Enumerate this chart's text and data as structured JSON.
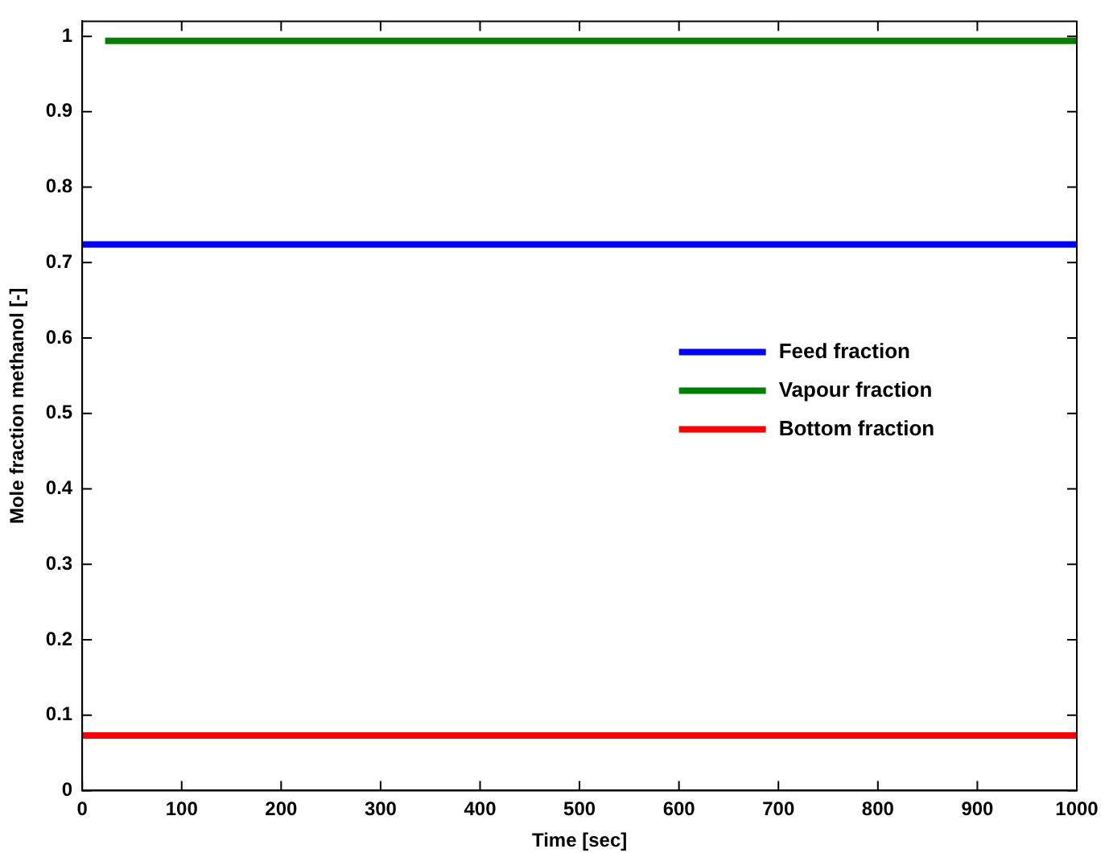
{
  "chart_data": {
    "type": "line",
    "xlabel": "Time [sec]",
    "ylabel": "Mole fraction methanol [-]",
    "xlim": [
      0,
      1000
    ],
    "xticks": [
      0,
      100,
      200,
      300,
      400,
      500,
      600,
      700,
      800,
      900,
      1000
    ],
    "ylim": [
      0,
      1.02
    ],
    "yticks": [
      0,
      0.1,
      0.2,
      0.3,
      0.4,
      0.5,
      0.6,
      0.7,
      0.8,
      0.9,
      1
    ],
    "grid": false,
    "legend": "right",
    "series": [
      {
        "name": "Feed fraction",
        "color": "#0000ff",
        "x": [
          0,
          1000
        ],
        "values": [
          0.724,
          0.724
        ]
      },
      {
        "name": "Vapour fraction",
        "color": "#008000",
        "x": [
          23,
          1000
        ],
        "values": [
          0.994,
          0.994
        ]
      },
      {
        "name": "Bottom fraction",
        "color": "#ff0000",
        "x": [
          0,
          1000
        ],
        "values": [
          0.073,
          0.073
        ]
      }
    ]
  }
}
